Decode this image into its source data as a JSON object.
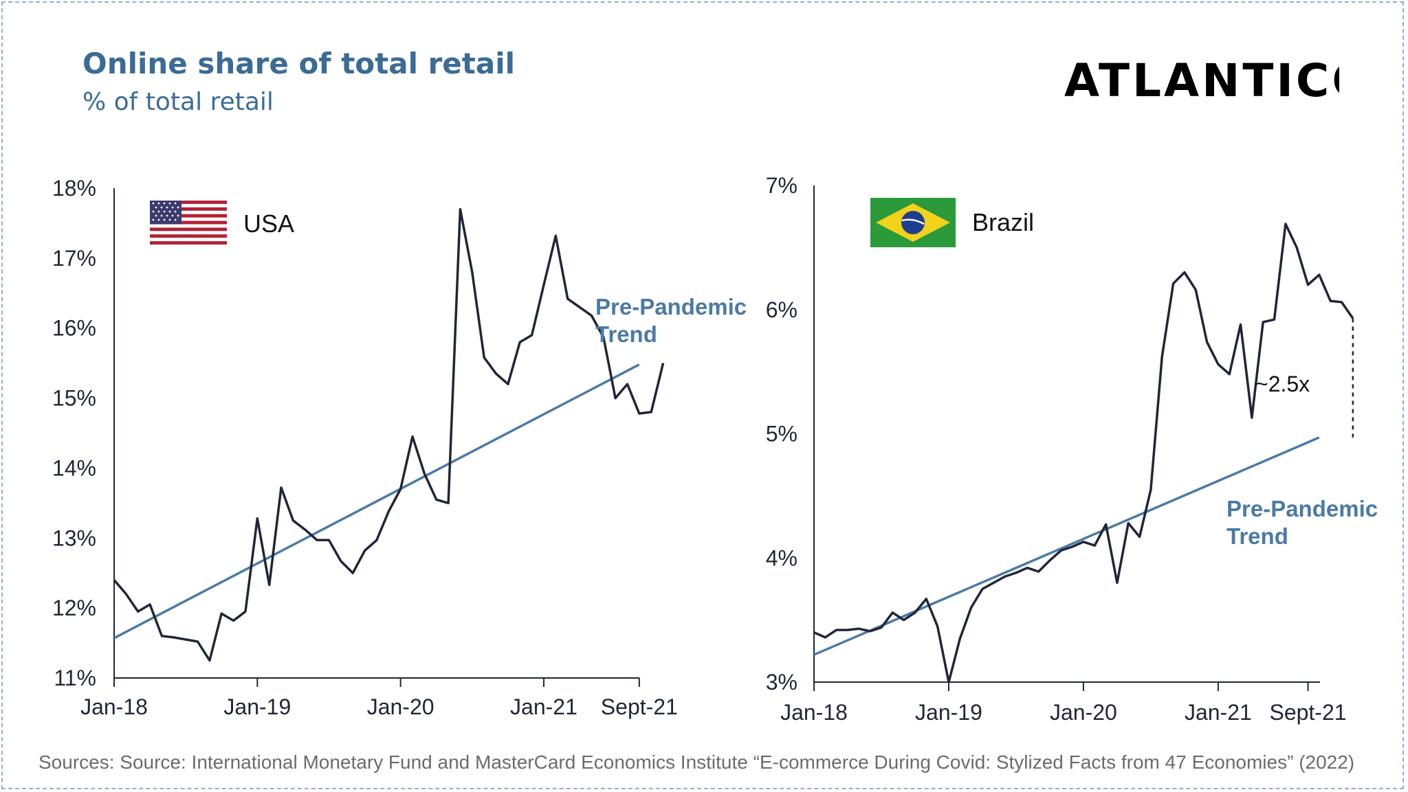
{
  "header": {
    "title": "Online share of total retail",
    "subtitle": "% of total retail",
    "logo_text": "ATLANTICO"
  },
  "footer": {
    "sources": "Sources: Source: International Monetary Fund and MasterCard Economics Institute “E-commerce During Covid: Stylized Facts from 47 Economies” (2022)"
  },
  "colors": {
    "accent": "#3b6b96",
    "trend_line": "#4b7aa6",
    "data_line": "#1f2637",
    "logo": "#1e2e4a",
    "source_text": "#6b6b6b"
  },
  "chart_data": [
    {
      "type": "line",
      "country": "USA",
      "flag_icon": "usa-flag-icon",
      "x_tick_labels": [
        "Jan-18",
        "Jan-19",
        "Jan-20",
        "Jan-21",
        "Sept-21"
      ],
      "x_tick_months": [
        0,
        12,
        24,
        36,
        44
      ],
      "ylim": [
        11,
        18
      ],
      "y_ticks": [
        11,
        12,
        13,
        14,
        15,
        16,
        17,
        18
      ],
      "y_unit": "%",
      "trend_label_line1": "Pre-Pandemic",
      "trend_label_line2": "Trend",
      "series": [
        {
          "values": [
            12.4,
            12.2,
            11.95,
            12.05,
            11.6,
            11.58,
            11.55,
            11.52,
            11.25,
            11.92,
            11.82,
            11.95,
            13.28,
            12.33,
            13.72,
            13.25,
            13.12,
            12.97,
            12.97,
            12.67,
            12.5,
            12.82,
            12.97,
            13.38,
            13.7,
            14.45,
            13.92,
            13.55,
            13.5,
            17.7,
            16.8,
            15.58,
            15.35,
            15.2,
            15.8,
            15.9,
            16.62,
            17.32,
            16.42,
            16.3,
            16.18,
            15.87,
            15.0,
            15.2,
            14.78,
            14.8,
            15.5
          ]
        },
        {
          "name": "Pre-Pandemic Trend",
          "x_months": [
            0,
            44
          ],
          "values": [
            11.57,
            15.48
          ]
        }
      ]
    },
    {
      "type": "line",
      "country": "Brazil",
      "flag_icon": "brazil-flag-icon",
      "x_tick_labels": [
        "Jan-18",
        "Jan-19",
        "Jan-20",
        "Jan-21",
        "Sept-21"
      ],
      "x_tick_months": [
        0,
        12,
        24,
        36,
        44
      ],
      "ylim": [
        3,
        7
      ],
      "y_ticks": [
        3,
        4,
        5,
        6,
        7
      ],
      "y_unit": "%",
      "trend_label_line1": "Pre-Pandemic",
      "trend_label_line2": "Trend",
      "annotation": "~2.5x",
      "series": [
        {
          "values": [
            3.4,
            3.36,
            3.42,
            3.42,
            3.43,
            3.41,
            3.44,
            3.56,
            3.5,
            3.56,
            3.67,
            3.45,
            3.0,
            3.35,
            3.6,
            3.75,
            3.8,
            3.85,
            3.88,
            3.92,
            3.89,
            3.98,
            4.06,
            4.09,
            4.13,
            4.1,
            4.27,
            3.8,
            4.28,
            4.17,
            4.55,
            5.62,
            6.21,
            6.3,
            6.16,
            5.74,
            5.56,
            5.48,
            5.88,
            5.13,
            5.9,
            5.92,
            6.69,
            6.5,
            6.2,
            6.28,
            6.07,
            6.06,
            5.93
          ]
        },
        {
          "name": "Pre-Pandemic Trend",
          "x_months": [
            0,
            45
          ],
          "values": [
            3.22,
            4.97
          ]
        }
      ]
    }
  ]
}
